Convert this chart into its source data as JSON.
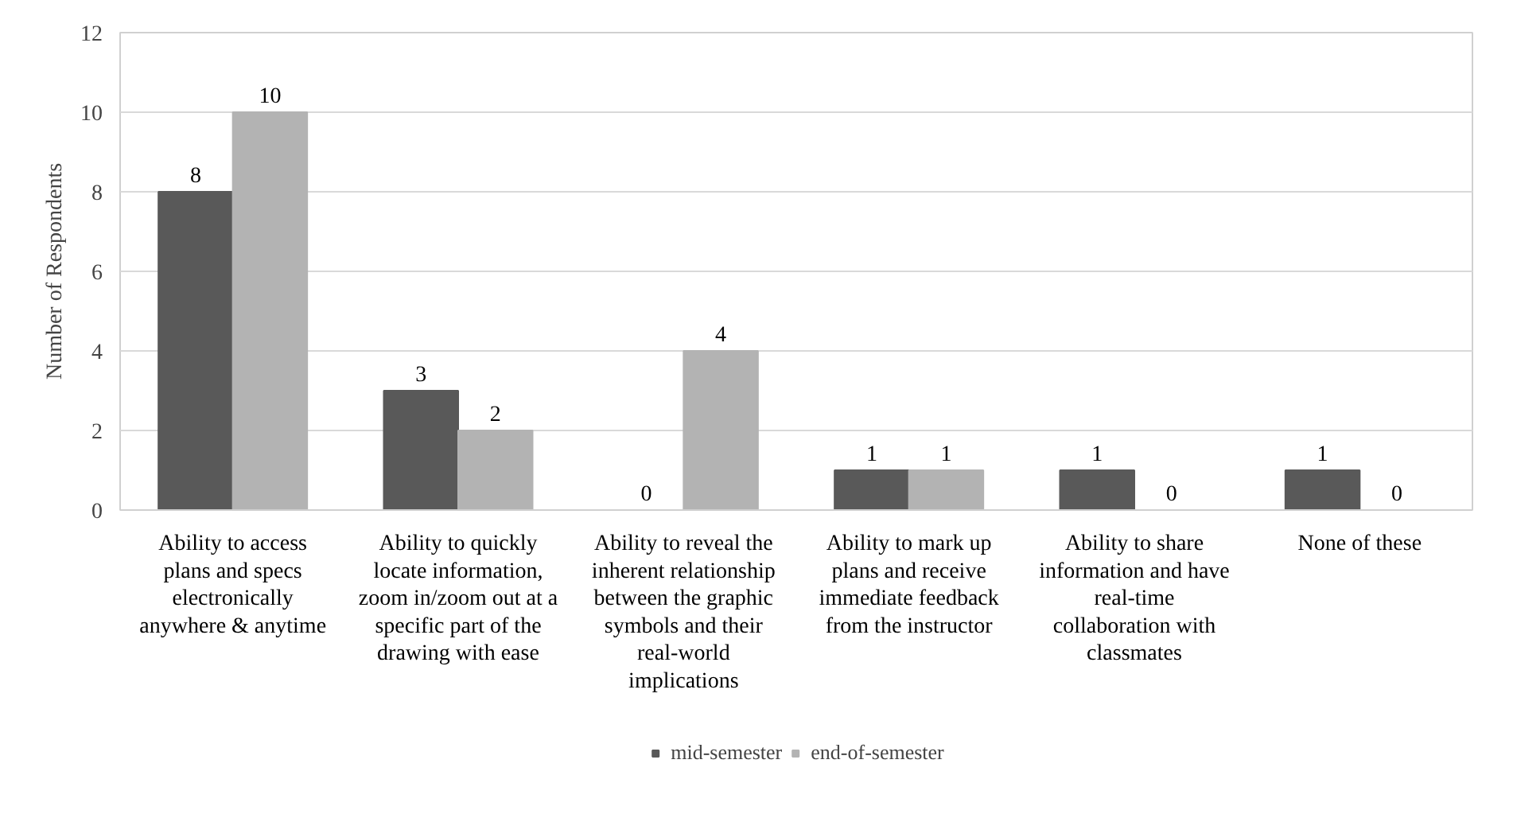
{
  "chart_data": {
    "type": "bar",
    "ylabel": "Number of Respondents",
    "categories": [
      "Ability to access plans and specs electronically anywhere & anytime",
      "Ability to quickly locate information, zoom in/zoom out at a specific part of the drawing with ease",
      "Ability to reveal the inherent relationship between the graphic symbols and their real-world implications",
      "Ability to mark up plans and receive immediate feedback from the instructor",
      "Ability to share information and have real-time collaboration with classmates",
      "None of these"
    ],
    "series": [
      {
        "name": "mid-semester",
        "color": "#595959",
        "values": [
          8,
          3,
          0,
          1,
          1,
          1
        ]
      },
      {
        "name": "end-of-semester",
        "color": "#b3b3b3",
        "values": [
          10,
          2,
          4,
          1,
          0,
          0
        ]
      }
    ],
    "ylim": [
      0,
      12
    ],
    "yticks": [
      0,
      2,
      4,
      6,
      8,
      10,
      12
    ],
    "grid": "y",
    "legend": "bottom",
    "data_labels": true
  }
}
